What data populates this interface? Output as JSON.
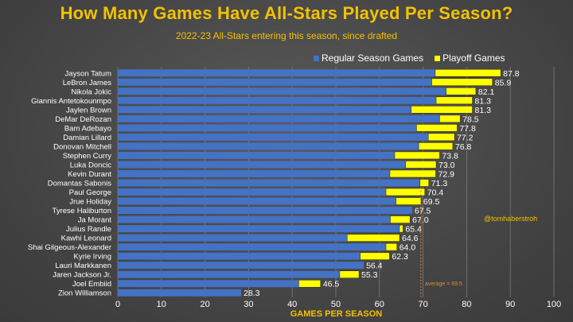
{
  "title": "How Many Games Have All-Stars Played Per Season?",
  "subtitle": "2022-23 All-Stars entering this season, since drafted",
  "legend": {
    "regular": "Regular Season Games",
    "playoff": "Playoff Games"
  },
  "handle": "@tomhaberstroh",
  "average_label": "average = 69.5",
  "colors": {
    "regular": "#4472c4",
    "playoff": "#ffff00",
    "title": "#f2c200",
    "average": "#e08a3a"
  },
  "chart_data": {
    "type": "bar",
    "orientation": "horizontal",
    "stacked": true,
    "title": "How Many Games Have All-Stars Played Per Season?",
    "xlabel": "GAMES PER SEASON",
    "ylabel": "",
    "xlim": [
      0,
      100
    ],
    "xticks": [
      0,
      10,
      20,
      30,
      40,
      50,
      60,
      70,
      80,
      90,
      100
    ],
    "grid": true,
    "legend_position": "top-right",
    "average": 69.5,
    "categories": [
      "Jayson Tatum",
      "LeBron James",
      "Nikola Jokic",
      "Giannis Antetokounmpo",
      "Jaylen Brown",
      "DeMar DeRozan",
      "Bam Adebayo",
      "Damian Lillard",
      "Donovan Mitchell",
      "Stephen Curry",
      "Luka Doncic",
      "Kevin Durant",
      "Domantas Sabonis",
      "Paul George",
      "Jrue Holiday",
      "Tyrese Haliburton",
      "Ja Morant",
      "Julius Randle",
      "Kawhi Leonard",
      "Shai Gilgeous-Alexander",
      "Kyrie Irving",
      "Lauri Markkanen",
      "Jaren Jackson Jr.",
      "Joel Embiid",
      "Zion Williamson"
    ],
    "series": [
      {
        "name": "Regular Season Games",
        "values": [
          72.8,
          72.0,
          75.3,
          73.0,
          67.3,
          73.8,
          68.5,
          71.2,
          69.0,
          63.5,
          66.0,
          62.4,
          69.3,
          61.5,
          63.8,
          67.5,
          62.5,
          64.6,
          52.6,
          61.5,
          55.6,
          56.4,
          50.9,
          41.5,
          28.3
        ]
      },
      {
        "name": "Playoff Games",
        "values": [
          15.0,
          13.9,
          6.8,
          8.3,
          14.0,
          4.7,
          9.3,
          6.0,
          7.8,
          10.3,
          7.0,
          10.5,
          2.0,
          8.9,
          5.7,
          0.0,
          4.5,
          0.8,
          12.0,
          2.5,
          6.7,
          0.0,
          4.4,
          5.0,
          0.0
        ]
      }
    ],
    "totals": [
      "87.8",
      "85.9",
      "82.1",
      "81.3",
      "81.3",
      "78.5",
      "77.8",
      "77.2",
      "76.8",
      "73.8",
      "73.0",
      "72.9",
      "71.3",
      "70.4",
      "69.5",
      "67.5",
      "67.0",
      "65.4",
      "64.6",
      "64.0",
      "62.3",
      "56.4",
      "55.3",
      "46.5",
      "28.3"
    ]
  }
}
